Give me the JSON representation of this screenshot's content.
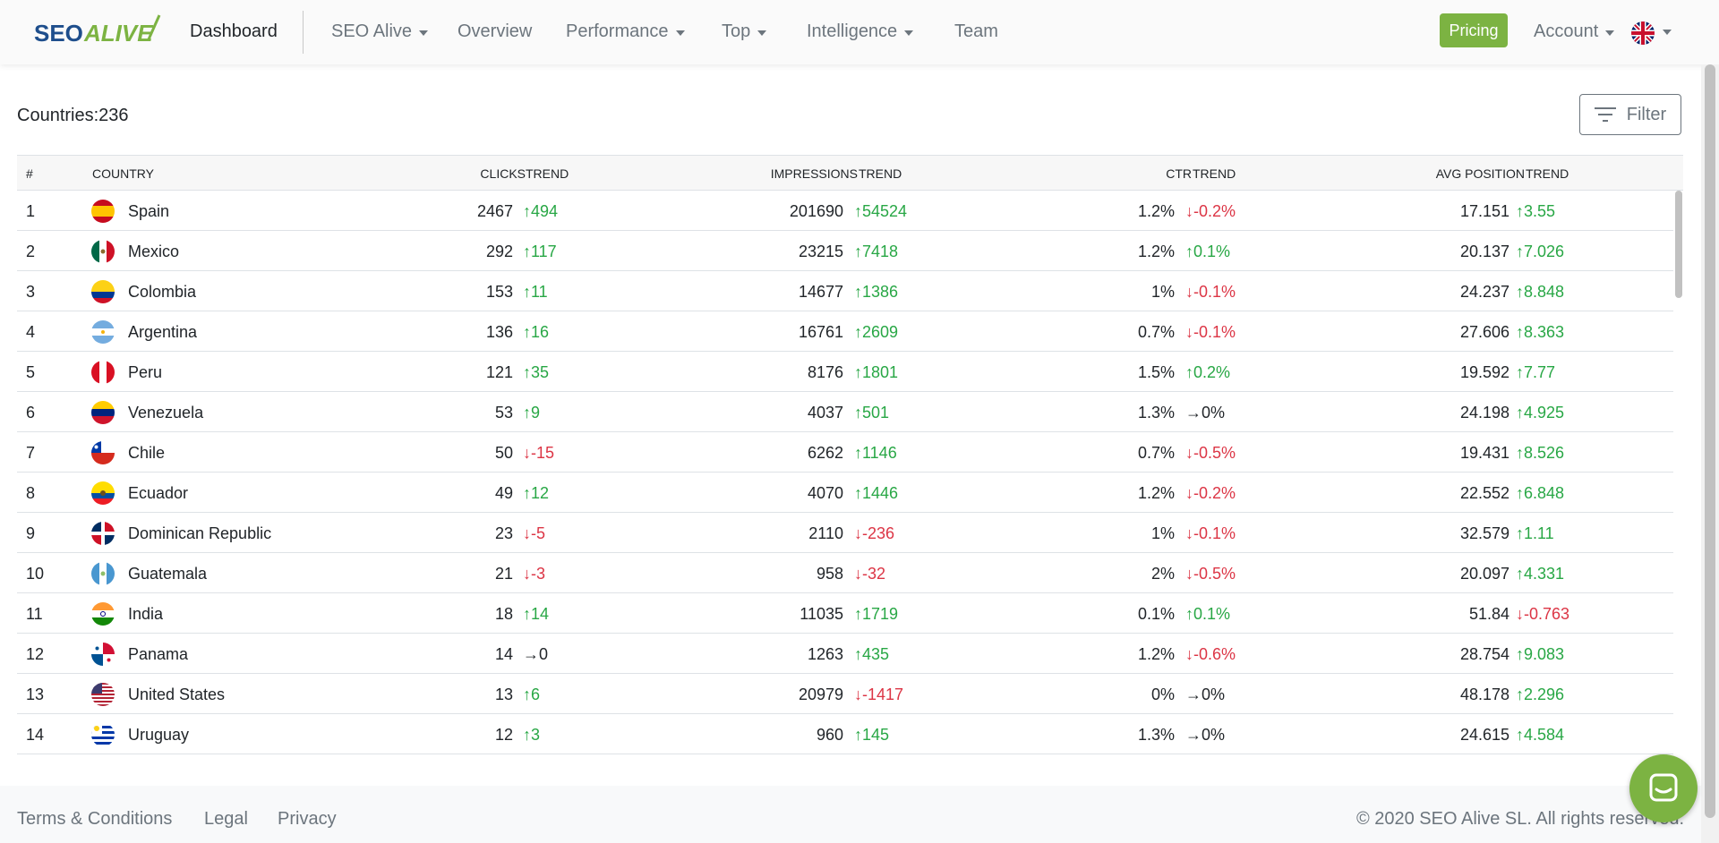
{
  "brand": {
    "logo_text_a": "SEO",
    "logo_text_b": "ALIVE"
  },
  "nav": {
    "home": "Dashboard",
    "items": [
      {
        "label": "SEO Alive",
        "dropdown": true
      },
      {
        "label": "Overview",
        "dropdown": false
      },
      {
        "label": "Performance",
        "dropdown": true
      },
      {
        "label": "Top",
        "dropdown": true
      },
      {
        "label": "Intelligence",
        "dropdown": true
      },
      {
        "label": "Team",
        "dropdown": false
      }
    ],
    "pricing": "Pricing",
    "account": "Account"
  },
  "summary": {
    "countries_label": "Countries:236"
  },
  "filter": {
    "label": "Filter"
  },
  "table": {
    "headers": [
      "#",
      "COUNTRY",
      "CLICKS",
      "TREND",
      "IMPRESSIONS",
      "TREND",
      "CTR",
      "TREND",
      "AVG POSITION",
      "TREND"
    ],
    "rows": [
      {
        "n": "1",
        "country": "Spain",
        "flag": "es",
        "clicks": "2467",
        "clicks_trend": "↑494",
        "clicks_dir": "up",
        "impr": "201690",
        "impr_trend": "↑54524",
        "impr_dir": "up",
        "ctr": "1.2%",
        "ctr_trend": "↓-0.2%",
        "ctr_dir": "down",
        "pos": "17.151",
        "pos_trend": "↑3.55",
        "pos_dir": "up"
      },
      {
        "n": "2",
        "country": "Mexico",
        "flag": "mx",
        "clicks": "292",
        "clicks_trend": "↑117",
        "clicks_dir": "up",
        "impr": "23215",
        "impr_trend": "↑7418",
        "impr_dir": "up",
        "ctr": "1.2%",
        "ctr_trend": "↑0.1%",
        "ctr_dir": "up",
        "pos": "20.137",
        "pos_trend": "↑7.026",
        "pos_dir": "up"
      },
      {
        "n": "3",
        "country": "Colombia",
        "flag": "co",
        "clicks": "153",
        "clicks_trend": "↑11",
        "clicks_dir": "up",
        "impr": "14677",
        "impr_trend": "↑1386",
        "impr_dir": "up",
        "ctr": "1%",
        "ctr_trend": "↓-0.1%",
        "ctr_dir": "down",
        "pos": "24.237",
        "pos_trend": "↑8.848",
        "pos_dir": "up"
      },
      {
        "n": "4",
        "country": "Argentina",
        "flag": "ar",
        "clicks": "136",
        "clicks_trend": "↑16",
        "clicks_dir": "up",
        "impr": "16761",
        "impr_trend": "↑2609",
        "impr_dir": "up",
        "ctr": "0.7%",
        "ctr_trend": "↓-0.1%",
        "ctr_dir": "down",
        "pos": "27.606",
        "pos_trend": "↑8.363",
        "pos_dir": "up"
      },
      {
        "n": "5",
        "country": "Peru",
        "flag": "pe",
        "clicks": "121",
        "clicks_trend": "↑35",
        "clicks_dir": "up",
        "impr": "8176",
        "impr_trend": "↑1801",
        "impr_dir": "up",
        "ctr": "1.5%",
        "ctr_trend": "↑0.2%",
        "ctr_dir": "up",
        "pos": "19.592",
        "pos_trend": "↑7.77",
        "pos_dir": "up"
      },
      {
        "n": "6",
        "country": "Venezuela",
        "flag": "ve",
        "clicks": "53",
        "clicks_trend": "↑9",
        "clicks_dir": "up",
        "impr": "4037",
        "impr_trend": "↑501",
        "impr_dir": "up",
        "ctr": "1.3%",
        "ctr_trend": "→0%",
        "ctr_dir": "flat",
        "pos": "24.198",
        "pos_trend": "↑4.925",
        "pos_dir": "up"
      },
      {
        "n": "7",
        "country": "Chile",
        "flag": "cl",
        "clicks": "50",
        "clicks_trend": "↓-15",
        "clicks_dir": "down",
        "impr": "6262",
        "impr_trend": "↑1146",
        "impr_dir": "up",
        "ctr": "0.7%",
        "ctr_trend": "↓-0.5%",
        "ctr_dir": "down",
        "pos": "19.431",
        "pos_trend": "↑8.526",
        "pos_dir": "up"
      },
      {
        "n": "8",
        "country": "Ecuador",
        "flag": "ec",
        "clicks": "49",
        "clicks_trend": "↑12",
        "clicks_dir": "up",
        "impr": "4070",
        "impr_trend": "↑1446",
        "impr_dir": "up",
        "ctr": "1.2%",
        "ctr_trend": "↓-0.2%",
        "ctr_dir": "down",
        "pos": "22.552",
        "pos_trend": "↑6.848",
        "pos_dir": "up"
      },
      {
        "n": "9",
        "country": "Dominican Republic",
        "flag": "do",
        "clicks": "23",
        "clicks_trend": "↓-5",
        "clicks_dir": "down",
        "impr": "2110",
        "impr_trend": "↓-236",
        "impr_dir": "down",
        "ctr": "1%",
        "ctr_trend": "↓-0.1%",
        "ctr_dir": "down",
        "pos": "32.579",
        "pos_trend": "↑1.11",
        "pos_dir": "up"
      },
      {
        "n": "10",
        "country": "Guatemala",
        "flag": "gt",
        "clicks": "21",
        "clicks_trend": "↓-3",
        "clicks_dir": "down",
        "impr": "958",
        "impr_trend": "↓-32",
        "impr_dir": "down",
        "ctr": "2%",
        "ctr_trend": "↓-0.5%",
        "ctr_dir": "down",
        "pos": "20.097",
        "pos_trend": "↑4.331",
        "pos_dir": "up"
      },
      {
        "n": "11",
        "country": "India",
        "flag": "in",
        "clicks": "18",
        "clicks_trend": "↑14",
        "clicks_dir": "up",
        "impr": "11035",
        "impr_trend": "↑1719",
        "impr_dir": "up",
        "ctr": "0.1%",
        "ctr_trend": "↑0.1%",
        "ctr_dir": "up",
        "pos": "51.84",
        "pos_trend": "↓-0.763",
        "pos_dir": "down"
      },
      {
        "n": "12",
        "country": "Panama",
        "flag": "pa",
        "clicks": "14",
        "clicks_trend": "→0",
        "clicks_dir": "flat",
        "impr": "1263",
        "impr_trend": "↑435",
        "impr_dir": "up",
        "ctr": "1.2%",
        "ctr_trend": "↓-0.6%",
        "ctr_dir": "down",
        "pos": "28.754",
        "pos_trend": "↑9.083",
        "pos_dir": "up"
      },
      {
        "n": "13",
        "country": "United States",
        "flag": "us",
        "clicks": "13",
        "clicks_trend": "↑6",
        "clicks_dir": "up",
        "impr": "20979",
        "impr_trend": "↓-1417",
        "impr_dir": "down",
        "ctr": "0%",
        "ctr_trend": "→0%",
        "ctr_dir": "flat",
        "pos": "48.178",
        "pos_trend": "↑2.296",
        "pos_dir": "up"
      },
      {
        "n": "14",
        "country": "Uruguay",
        "flag": "uy",
        "clicks": "12",
        "clicks_trend": "↑3",
        "clicks_dir": "up",
        "impr": "960",
        "impr_trend": "↑145",
        "impr_dir": "up",
        "ctr": "1.3%",
        "ctr_trend": "→0%",
        "ctr_dir": "flat",
        "pos": "24.615",
        "pos_trend": "↑4.584",
        "pos_dir": "up"
      }
    ]
  },
  "footer": {
    "links": [
      "Terms & Conditions",
      "Legal",
      "Privacy"
    ],
    "copyright": "© 2020 SEO Alive SL. All rights reserved."
  },
  "colors": {
    "brand_green": "#7cb342",
    "logo_blue": "#1e4e8c",
    "trend_up": "#28a745",
    "trend_down": "#dc3545"
  },
  "icons": {
    "filter": "filter-lines-icon",
    "chat": "chat-bubble-icon",
    "language": "uk-flag-icon"
  }
}
